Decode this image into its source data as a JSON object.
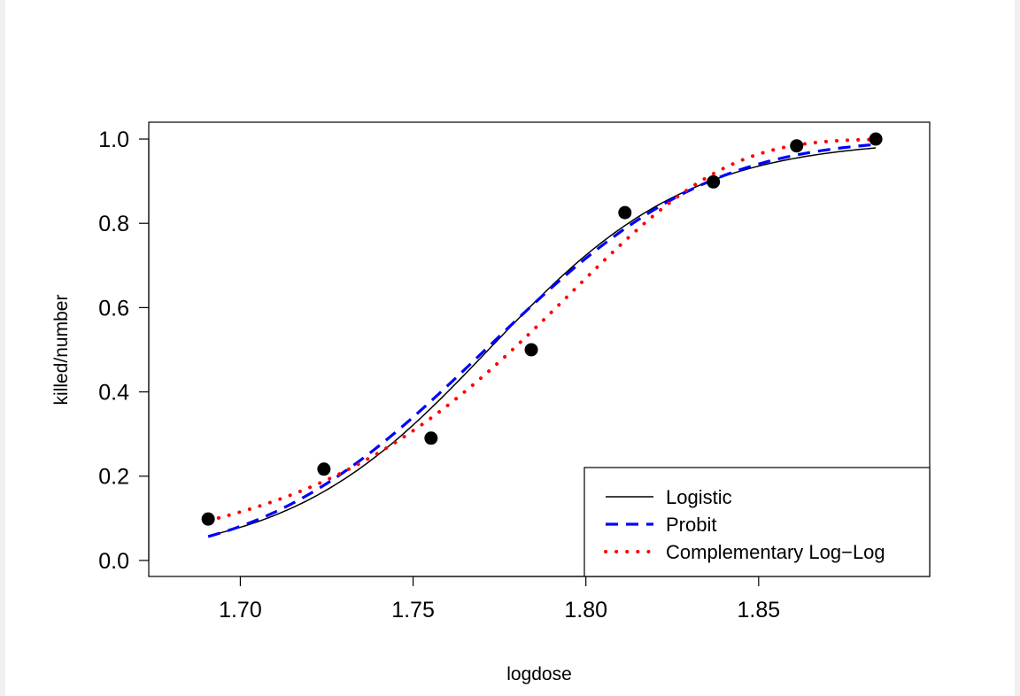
{
  "chart_data": {
    "type": "scatter",
    "title": "",
    "xlabel": "logdose",
    "ylabel": "killed/number",
    "xlim": [
      1.6735,
      1.8995
    ],
    "ylim": [
      -0.038,
      1.04
    ],
    "xticks": [
      "1.70",
      "1.75",
      "1.80",
      "1.85"
    ],
    "xtick_values": [
      1.7,
      1.75,
      1.8,
      1.85
    ],
    "yticks": [
      "0.0",
      "0.2",
      "0.4",
      "0.6",
      "0.8",
      "1.0"
    ],
    "ytick_values": [
      0.0,
      0.2,
      0.4,
      0.6,
      0.8,
      1.0
    ],
    "points": {
      "x": [
        1.6907,
        1.7242,
        1.7552,
        1.7842,
        1.8113,
        1.8369,
        1.861,
        1.8839
      ],
      "y": [
        0.0983,
        0.2167,
        0.2903,
        0.5,
        0.8254,
        0.8983,
        0.9839,
        1.0
      ],
      "color": "#000000"
    },
    "legend": {
      "position": "bottom-right",
      "entries": [
        {
          "label": "Logistic",
          "color": "#000000",
          "style": "solid"
        },
        {
          "label": "Probit",
          "color": "#0000ff",
          "style": "dashed"
        },
        {
          "label": "Complementary Log−Log",
          "color": "#ff0000",
          "style": "dotted"
        }
      ]
    },
    "series": [
      {
        "name": "Logistic",
        "link": "logit",
        "intercept": -60.72,
        "slope": 34.27,
        "color": "#000000",
        "style": "solid"
      },
      {
        "name": "Probit",
        "link": "probit",
        "intercept": -34.94,
        "slope": 19.73,
        "color": "#0000ff",
        "style": "dashed"
      },
      {
        "name": "Complementary Log−Log",
        "link": "cloglog",
        "intercept": -39.57,
        "slope": 22.04,
        "color": "#ff0000",
        "style": "dotted"
      }
    ],
    "curve_x_range": [
      1.6907,
      1.8839
    ]
  }
}
